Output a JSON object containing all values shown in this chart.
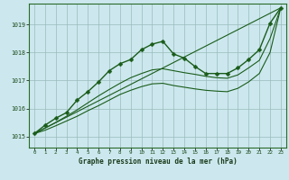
{
  "title": "Graphe pression niveau de la mer (hPa)",
  "bg_color": "#cce8ee",
  "line_color": "#1a5c1a",
  "grid_color": "#99bbbb",
  "ylim": [
    1014.6,
    1019.75
  ],
  "xlim": [
    -0.5,
    23.5
  ],
  "yticks": [
    1015,
    1016,
    1017,
    1018,
    1019
  ],
  "xticks": [
    0,
    1,
    2,
    3,
    4,
    5,
    6,
    7,
    8,
    9,
    10,
    11,
    12,
    13,
    14,
    15,
    16,
    17,
    18,
    19,
    20,
    21,
    22,
    23
  ],
  "series": [
    {
      "x": [
        0,
        1,
        2,
        3,
        4,
        5,
        6,
        7,
        8,
        9,
        10,
        11,
        12,
        13,
        14,
        15,
        16,
        17,
        18,
        19,
        20,
        21,
        22,
        23
      ],
      "y": [
        1015.1,
        1015.4,
        1015.65,
        1015.85,
        1016.3,
        1016.6,
        1016.95,
        1017.35,
        1017.6,
        1017.75,
        1018.1,
        1018.3,
        1018.4,
        1017.95,
        1017.8,
        1017.5,
        1017.25,
        1017.25,
        1017.25,
        1017.45,
        1017.75,
        1018.1,
        1019.05,
        1019.6
      ],
      "marker": "D",
      "markersize": 2.5,
      "linewidth": 1.0,
      "has_marker": true
    },
    {
      "x": [
        0,
        1,
        2,
        3,
        4,
        5,
        6,
        7,
        8,
        9,
        10,
        11,
        12,
        13,
        14,
        15,
        16,
        17,
        18,
        19,
        20,
        21,
        22,
        23
      ],
      "y": [
        1015.1,
        1015.3,
        1015.5,
        1015.72,
        1015.95,
        1016.2,
        1016.45,
        1016.68,
        1016.9,
        1017.1,
        1017.25,
        1017.38,
        1017.42,
        1017.35,
        1017.28,
        1017.22,
        1017.15,
        1017.1,
        1017.08,
        1017.2,
        1017.45,
        1017.72,
        1018.5,
        1019.6
      ],
      "marker": null,
      "markersize": 0,
      "linewidth": 0.8,
      "has_marker": false
    },
    {
      "x": [
        0,
        1,
        2,
        3,
        4,
        5,
        6,
        7,
        8,
        9,
        10,
        11,
        12,
        13,
        14,
        15,
        16,
        17,
        18,
        19,
        20,
        21,
        22,
        23
      ],
      "y": [
        1015.1,
        1015.22,
        1015.38,
        1015.55,
        1015.72,
        1015.92,
        1016.1,
        1016.3,
        1016.5,
        1016.65,
        1016.78,
        1016.88,
        1016.9,
        1016.82,
        1016.76,
        1016.7,
        1016.65,
        1016.62,
        1016.6,
        1016.72,
        1016.95,
        1017.25,
        1018.0,
        1019.6
      ],
      "marker": null,
      "markersize": 0,
      "linewidth": 0.8,
      "has_marker": false
    },
    {
      "x": [
        0,
        23
      ],
      "y": [
        1015.1,
        1019.6
      ],
      "marker": null,
      "markersize": 0,
      "linewidth": 0.8,
      "has_marker": false
    }
  ]
}
